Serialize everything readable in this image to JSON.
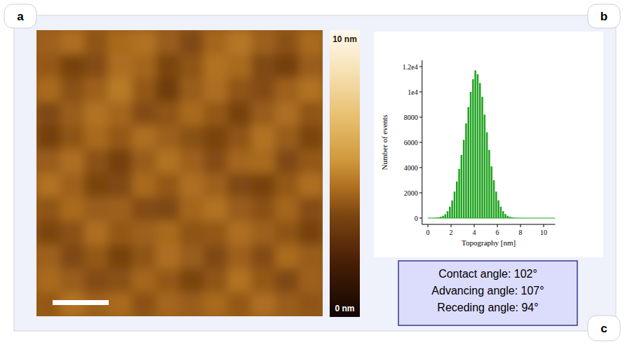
{
  "panel_labels": [
    "a",
    "b",
    "c"
  ],
  "chart_data": [
    {
      "type": "heatmap",
      "tick_labels": false,
      "cells": [
        [
          4.2,
          4.5,
          3.9,
          4.4,
          4.6,
          4.1,
          3.6,
          4.3,
          4.7,
          4.2,
          3.8,
          4.4
        ],
        [
          4.0,
          3.4,
          3.7,
          4.5,
          4.3,
          3.5,
          3.9,
          4.6,
          4.4,
          3.6,
          3.3,
          4.1
        ],
        [
          4.4,
          3.8,
          4.2,
          4.8,
          4.0,
          3.2,
          4.1,
          4.5,
          3.9,
          3.7,
          4.2,
          4.6
        ],
        [
          3.6,
          4.1,
          4.6,
          4.3,
          3.7,
          3.9,
          4.4,
          4.0,
          3.4,
          4.1,
          4.5,
          3.9
        ],
        [
          3.3,
          3.9,
          4.4,
          4.0,
          4.5,
          4.2,
          3.8,
          3.5,
          3.9,
          4.6,
          4.1,
          3.5
        ],
        [
          4.1,
          4.5,
          3.8,
          3.3,
          4.1,
          4.6,
          4.2,
          3.7,
          4.3,
          4.4,
          3.6,
          4.0
        ],
        [
          4.6,
          4.2,
          3.5,
          3.6,
          4.4,
          4.0,
          4.5,
          4.2,
          3.6,
          3.4,
          4.0,
          4.5
        ],
        [
          3.9,
          4.4,
          4.1,
          4.2,
          3.7,
          3.6,
          4.3,
          4.6,
          4.1,
          3.8,
          4.3,
          3.7
        ],
        [
          3.5,
          3.8,
          4.5,
          4.0,
          4.2,
          4.4,
          3.9,
          4.0,
          4.5,
          4.2,
          3.9,
          3.4
        ],
        [
          4.2,
          3.6,
          4.0,
          3.4,
          3.9,
          4.5,
          4.1,
          3.6,
          4.2,
          3.7,
          4.4,
          4.1
        ],
        [
          4.4,
          4.1,
          3.7,
          3.8,
          4.3,
          4.0,
          3.5,
          3.9,
          4.6,
          4.0,
          3.6,
          4.2
        ],
        [
          4.0,
          4.6,
          4.2,
          4.4,
          3.8,
          4.3,
          4.1,
          4.4,
          4.0,
          4.5,
          4.1,
          3.9
        ]
      ],
      "colorbar_range": [
        0,
        10
      ],
      "colorbar_ticks": [
        {
          "value": 0,
          "label": "0 nm"
        },
        {
          "value": 10,
          "label": "10 nm"
        }
      ]
    },
    {
      "type": "histogram",
      "xlabel": "Topography [nm]",
      "ylabel": "Number of events",
      "color": "#1fa31f",
      "bins": [
        0,
        0.2,
        0.4,
        0.6,
        0.8,
        1,
        1.2,
        1.4,
        1.6,
        1.8,
        2,
        2.2,
        2.4,
        2.6,
        2.8,
        3,
        3.2,
        3.4,
        3.6,
        3.8,
        4,
        4.2,
        4.4,
        4.6,
        4.8,
        5,
        5.2,
        5.4,
        5.6,
        5.8,
        6,
        6.2,
        6.4,
        6.6,
        6.8,
        7,
        7.2,
        7.4,
        7.6,
        7.8,
        8,
        8.2,
        8.4,
        8.6,
        8.8,
        9,
        9.2,
        9.4,
        9.6,
        9.8,
        10,
        10.2,
        10.4,
        10.6,
        10.8,
        11
      ],
      "counts": [
        0,
        0,
        10,
        30,
        60,
        100,
        180,
        300,
        550,
        900,
        1400,
        2100,
        2900,
        3900,
        5000,
        6200,
        7500,
        8800,
        10000,
        11000,
        11700,
        11400,
        10700,
        9600,
        8200,
        6800,
        5400,
        4100,
        3000,
        2100,
        1400,
        900,
        550,
        320,
        180,
        100,
        60,
        30,
        15,
        8,
        4,
        2,
        0,
        0,
        0,
        0,
        0,
        0,
        0,
        0,
        0,
        0,
        0,
        0,
        0
      ],
      "xlim": [
        -0.5,
        11
      ],
      "ylim": [
        -500,
        12500
      ],
      "xticks": [
        0,
        2,
        4,
        6,
        8,
        10
      ],
      "yticks": [
        0,
        2000,
        4000,
        6000,
        8000,
        {
          "value": 10000,
          "label": "1e4"
        },
        {
          "value": 12000,
          "label": "1.2e4"
        }
      ]
    }
  ],
  "wetting": {
    "lines": [
      "Contact angle: 102°",
      "Advancing angle: 107°",
      "Receding angle: 94°"
    ]
  }
}
